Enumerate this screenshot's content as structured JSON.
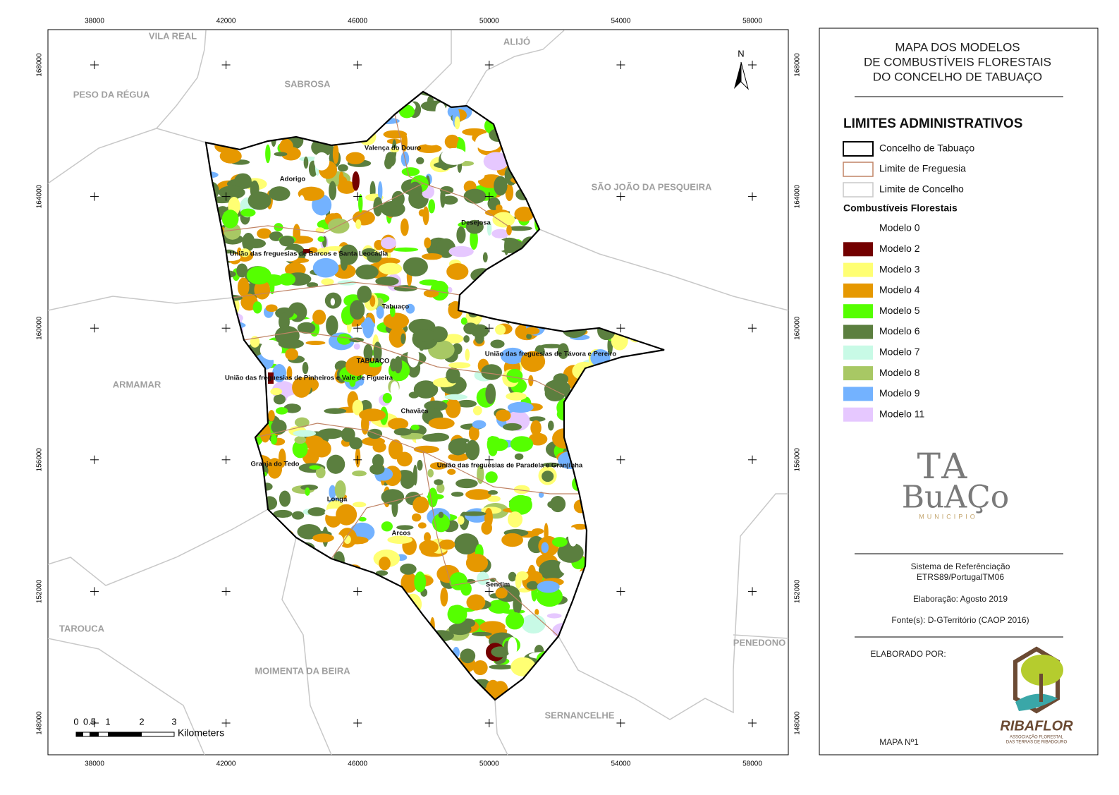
{
  "map": {
    "x_labels": [
      "38000",
      "42000",
      "46000",
      "50000",
      "54000",
      "58000"
    ],
    "y_labels": [
      "168000",
      "164000",
      "160000",
      "156000",
      "152000",
      "148000"
    ],
    "municipalities": [
      "VILA REAL",
      "ALIJÓ",
      "PESO DA RÉGUA",
      "SABROSA",
      "SÃO JOÃO DA PESQUEIRA",
      "ARMAMAR",
      "TAROUCA",
      "MOIMENTA DA BEIRA",
      "SERNANCELHE",
      "PENEDONO"
    ],
    "parishes": [
      "Valença do Douro",
      "Adorigo",
      "Desejosa",
      "União das freguesias de Barcos e Santa Leocádia",
      "Tabuaço",
      "TABUAÇO",
      "União das freguesias de Távora e Pereiro",
      "União das freguesias de Pinheiros e Vale de Figueira",
      "Chavães",
      "Granja do Tedo",
      "União das freguesias de Paradela e Granjinha",
      "Longa",
      "Arcos",
      "Sendim"
    ],
    "north": "N",
    "scale": {
      "labels": [
        "0",
        "0.5",
        "1",
        "2",
        "3"
      ],
      "unit": "Kilometers"
    }
  },
  "legend": {
    "title_lines": [
      "MAPA DOS MODELOS",
      "DE COMBUSTÍVEIS FLORESTAIS",
      "DO CONCELHO DE TABUAÇO"
    ],
    "admin_title": "LIMITES ADMINISTRATIVOS",
    "admin_items": [
      {
        "label": "Concelho de Tabuaço",
        "color": "#000000"
      },
      {
        "label": "Limite de Freguesia",
        "color": "#c08466"
      },
      {
        "label": "Limite de Concelho",
        "color": "#c8c8c8"
      }
    ],
    "fuel_title": "Combustíveis Florestais",
    "fuel_items": [
      {
        "label": "Modelo 0",
        "color": "#ffffff"
      },
      {
        "label": "Modelo 2",
        "color": "#730000"
      },
      {
        "label": "Modelo 3",
        "color": "#ffff73"
      },
      {
        "label": "Modelo 4",
        "color": "#e69800"
      },
      {
        "label": "Modelo 5",
        "color": "#55ff00"
      },
      {
        "label": "Modelo 6",
        "color": "#5b7f3f"
      },
      {
        "label": "Modelo 7",
        "color": "#c8fae6"
      },
      {
        "label": "Modelo 8",
        "color": "#a8c864"
      },
      {
        "label": "Modelo 9",
        "color": "#73b2ff"
      },
      {
        "label": "Modelo 11",
        "color": "#e6c8ff"
      }
    ]
  },
  "logo": {
    "line1": "TA",
    "line2": "BuAÇo",
    "line3": "MUNICIPIO"
  },
  "info": {
    "reference": [
      "Sistema de Referênciação",
      "ETRS89/PortugalTM06"
    ],
    "date": "Elaboração: Agosto 2019",
    "source": "Fonte(s): D-GTerritório (CAOP 2016)",
    "by": "ELABORADO POR:",
    "author_name": "RIBAFLOR",
    "author_sub": [
      "ASSOCIAÇÃO FLORESTAL",
      "DAS TERRAS DE RIBADOURO"
    ],
    "map_number": "MAPA Nº1"
  }
}
